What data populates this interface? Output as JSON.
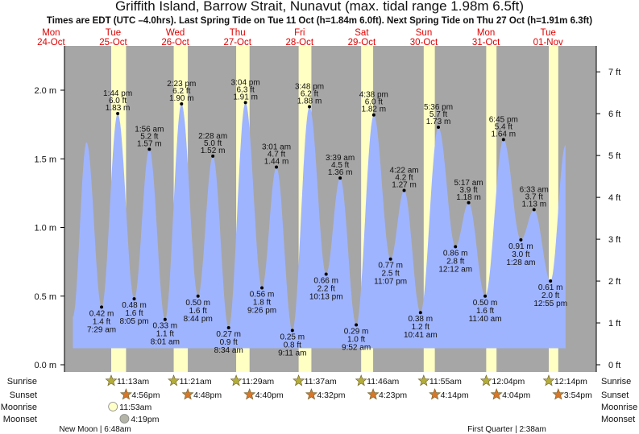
{
  "chart_data": {
    "type": "area",
    "title": "Griffith Island, Barrow Strait, Nunavut (max. tidal range 1.98m 6.5ft)",
    "subtitle": "Times are EDT (UTC –4.0hrs). Last Spring Tide on Tue 11 Oct (h=1.84m 6.0ft). Next Spring Tide on Thu 27 Oct (h=1.91m 6.3ft)",
    "x_unit": "days since 25-Oct 00:00",
    "ylim_m": [
      0.0,
      2.3
    ],
    "y_left_ticks": [
      {
        "v": 0.0,
        "label": "0.0 m"
      },
      {
        "v": 0.5,
        "label": "0.5 m"
      },
      {
        "v": 1.0,
        "label": "1.0 m"
      },
      {
        "v": 1.5,
        "label": "1.5 m"
      },
      {
        "v": 2.0,
        "label": "2.0 m"
      }
    ],
    "y_right_ticks": [
      {
        "v": 0,
        "label": "0 ft"
      },
      {
        "v": 1,
        "label": "1 ft"
      },
      {
        "v": 2,
        "label": "2 ft"
      },
      {
        "v": 3,
        "label": "3 ft"
      },
      {
        "v": 4,
        "label": "4 ft"
      },
      {
        "v": 5,
        "label": "5 ft"
      },
      {
        "v": 6,
        "label": "6 ft"
      },
      {
        "v": 7,
        "label": "7 ft"
      }
    ],
    "days": [
      {
        "dow": "Mon",
        "date": "24-Oct"
      },
      {
        "dow": "Tue",
        "date": "25-Oct"
      },
      {
        "dow": "Wed",
        "date": "26-Oct"
      },
      {
        "dow": "Thu",
        "date": "27-Oct"
      },
      {
        "dow": "Fri",
        "date": "28-Oct"
      },
      {
        "dow": "Sat",
        "date": "29-Oct"
      },
      {
        "dow": "Sun",
        "date": "30-Oct"
      },
      {
        "dow": "Mon",
        "date": "31-Oct"
      },
      {
        "dow": "Tue",
        "date": "01-Nov"
      }
    ],
    "curve_start": {
      "t": -0.15,
      "m": 0.35
    },
    "curve_end": {
      "t": 7.78,
      "m": 1.6
    },
    "extremes": [
      {
        "type": "high",
        "t": 0.07,
        "m": 1.62,
        "label": false
      },
      {
        "type": "low",
        "t": 0.312,
        "m": 0.42,
        "m_label": "0.42 m",
        "ft": "1.4 ft",
        "time": "7:29 am"
      },
      {
        "type": "high",
        "t": 0.572,
        "m": 1.83,
        "m_label": "1.83 m",
        "ft": "6.0 ft",
        "time": "1:44 pm"
      },
      {
        "type": "low",
        "t": 0.837,
        "m": 0.48,
        "m_label": "0.48 m",
        "ft": "1.6 ft",
        "time": "8:05 pm"
      },
      {
        "type": "high",
        "t": 1.081,
        "m": 1.57,
        "m_label": "1.57 m",
        "ft": "5.2 ft",
        "time": "1:56 am"
      },
      {
        "type": "low",
        "t": 1.334,
        "m": 0.33,
        "m_label": "0.33 m",
        "ft": "1.1 ft",
        "time": "8:01 am"
      },
      {
        "type": "high",
        "t": 1.599,
        "m": 1.9,
        "m_label": "1.90 m",
        "ft": "6.2 ft",
        "time": "2:23 pm"
      },
      {
        "type": "low",
        "t": 1.864,
        "m": 0.5,
        "m_label": "0.50 m",
        "ft": "1.6 ft",
        "time": "8:44 pm"
      },
      {
        "type": "high",
        "t": 2.103,
        "m": 1.52,
        "m_label": "1.52 m",
        "ft": "5.0 ft",
        "time": "2:28 am"
      },
      {
        "type": "low",
        "t": 2.357,
        "m": 0.27,
        "m_label": "0.27 m",
        "ft": "0.9 ft",
        "time": "8:34 am"
      },
      {
        "type": "high",
        "t": 2.628,
        "m": 1.91,
        "m_label": "1.91 m",
        "ft": "6.3 ft",
        "time": "3:04 pm"
      },
      {
        "type": "low",
        "t": 2.893,
        "m": 0.56,
        "m_label": "0.56 m",
        "ft": "1.8 ft",
        "time": "9:26 pm"
      },
      {
        "type": "high",
        "t": 3.126,
        "m": 1.44,
        "m_label": "1.44 m",
        "ft": "4.7 ft",
        "time": "3:01 am"
      },
      {
        "type": "low",
        "t": 3.383,
        "m": 0.25,
        "m_label": "0.25 m",
        "ft": "0.8 ft",
        "time": "9:11 am"
      },
      {
        "type": "high",
        "t": 3.658,
        "m": 1.88,
        "m_label": "1.88 m",
        "ft": "6.2 ft",
        "time": "3:48 pm"
      },
      {
        "type": "low",
        "t": 3.926,
        "m": 0.66,
        "m_label": "0.66 m",
        "ft": "2.2 ft",
        "time": "10:13 pm"
      },
      {
        "type": "high",
        "t": 4.152,
        "m": 1.36,
        "m_label": "1.36 m",
        "ft": "4.5 ft",
        "time": "3:39 am"
      },
      {
        "type": "low",
        "t": 4.411,
        "m": 0.29,
        "m_label": "0.29 m",
        "ft": "1.0 ft",
        "time": "9:52 am"
      },
      {
        "type": "high",
        "t": 4.693,
        "m": 1.82,
        "m_label": "1.82 m",
        "ft": "6.0 ft",
        "time": "4:38 pm"
      },
      {
        "type": "low",
        "t": 4.963,
        "m": 0.77,
        "m_label": "0.77 m",
        "ft": "2.5 ft",
        "time": "11:07 pm"
      },
      {
        "type": "high",
        "t": 5.182,
        "m": 1.27,
        "m_label": "1.27 m",
        "ft": "4.2 ft",
        "time": "4:22 am"
      },
      {
        "type": "low",
        "t": 5.445,
        "m": 0.38,
        "m_label": "0.38 m",
        "ft": "1.2 ft",
        "time": "10:41 am"
      },
      {
        "type": "high",
        "t": 5.733,
        "m": 1.73,
        "m_label": "1.73 m",
        "ft": "5.7 ft",
        "time": "5:36 pm"
      },
      {
        "type": "low",
        "t": 6.008,
        "m": 0.86,
        "m_label": "0.86 m",
        "ft": "2.8 ft",
        "time": "12:12 am"
      },
      {
        "type": "high",
        "t": 6.22,
        "m": 1.18,
        "m_label": "1.18 m",
        "ft": "3.9 ft",
        "time": "5:17 am"
      },
      {
        "type": "low",
        "t": 6.486,
        "m": 0.5,
        "m_label": "0.50 m",
        "ft": "1.6 ft",
        "time": "11:40 am"
      },
      {
        "type": "high",
        "t": 6.781,
        "m": 1.64,
        "m_label": "1.64 m",
        "ft": "5.4 ft",
        "time": "6:45 pm"
      },
      {
        "type": "low",
        "t": 7.061,
        "m": 0.91,
        "m_label": "0.91 m",
        "ft": "3.0 ft",
        "time": "1:28 am"
      },
      {
        "type": "high",
        "t": 7.273,
        "m": 1.13,
        "m_label": "1.13 m",
        "ft": "3.7 ft",
        "time": "6:33 am"
      },
      {
        "type": "low",
        "t": 7.538,
        "m": 0.61,
        "m_label": "0.61 m",
        "ft": "2.0 ft",
        "time": "12:55 pm"
      }
    ],
    "row_labels": {
      "sunrise": "Sunrise",
      "sunset": "Sunset",
      "moonrise": "Moonrise",
      "moonset": "Moonset"
    },
    "sun": [
      {
        "rise": "11:13am",
        "t_rise": 0.467,
        "set": "4:56pm",
        "t_set": 0.706
      },
      {
        "rise": "11:21am",
        "t_rise": 1.473,
        "set": "4:48pm",
        "t_set": 1.7
      },
      {
        "rise": "11:29am",
        "t_rise": 2.478,
        "set": "4:40pm",
        "t_set": 2.694
      },
      {
        "rise": "11:37am",
        "t_rise": 3.484,
        "set": "4:32pm",
        "t_set": 3.689
      },
      {
        "rise": "11:46am",
        "t_rise": 4.49,
        "set": "4:23pm",
        "t_set": 4.683
      },
      {
        "rise": "11:55am",
        "t_rise": 5.497,
        "set": "4:14pm",
        "t_set": 5.676
      },
      {
        "rise": "12:04pm",
        "t_rise": 6.503,
        "set": "4:04pm",
        "t_set": 6.669
      },
      {
        "rise": "12:14pm",
        "t_rise": 7.51,
        "set": "3:54pm",
        "t_set": 7.663
      }
    ],
    "moon": [
      {
        "event": "moonrise",
        "time": "11:53am",
        "t": 0.495
      },
      {
        "event": "moonset",
        "time": "4:19pm",
        "t": 0.68
      }
    ],
    "phases": [
      "New Moon | 6:48am",
      "First Quarter | 2:38am"
    ],
    "colors": {
      "background": "#a6a6a6",
      "water": "#9fb4fe",
      "daylight": "#ffffc4",
      "day_label": "#e00000",
      "sunrise_star": "#b3ad3c",
      "sunset_star": "#d6772a",
      "moonrise": "#ffffc8",
      "moonset": "#b4b4a8"
    }
  }
}
